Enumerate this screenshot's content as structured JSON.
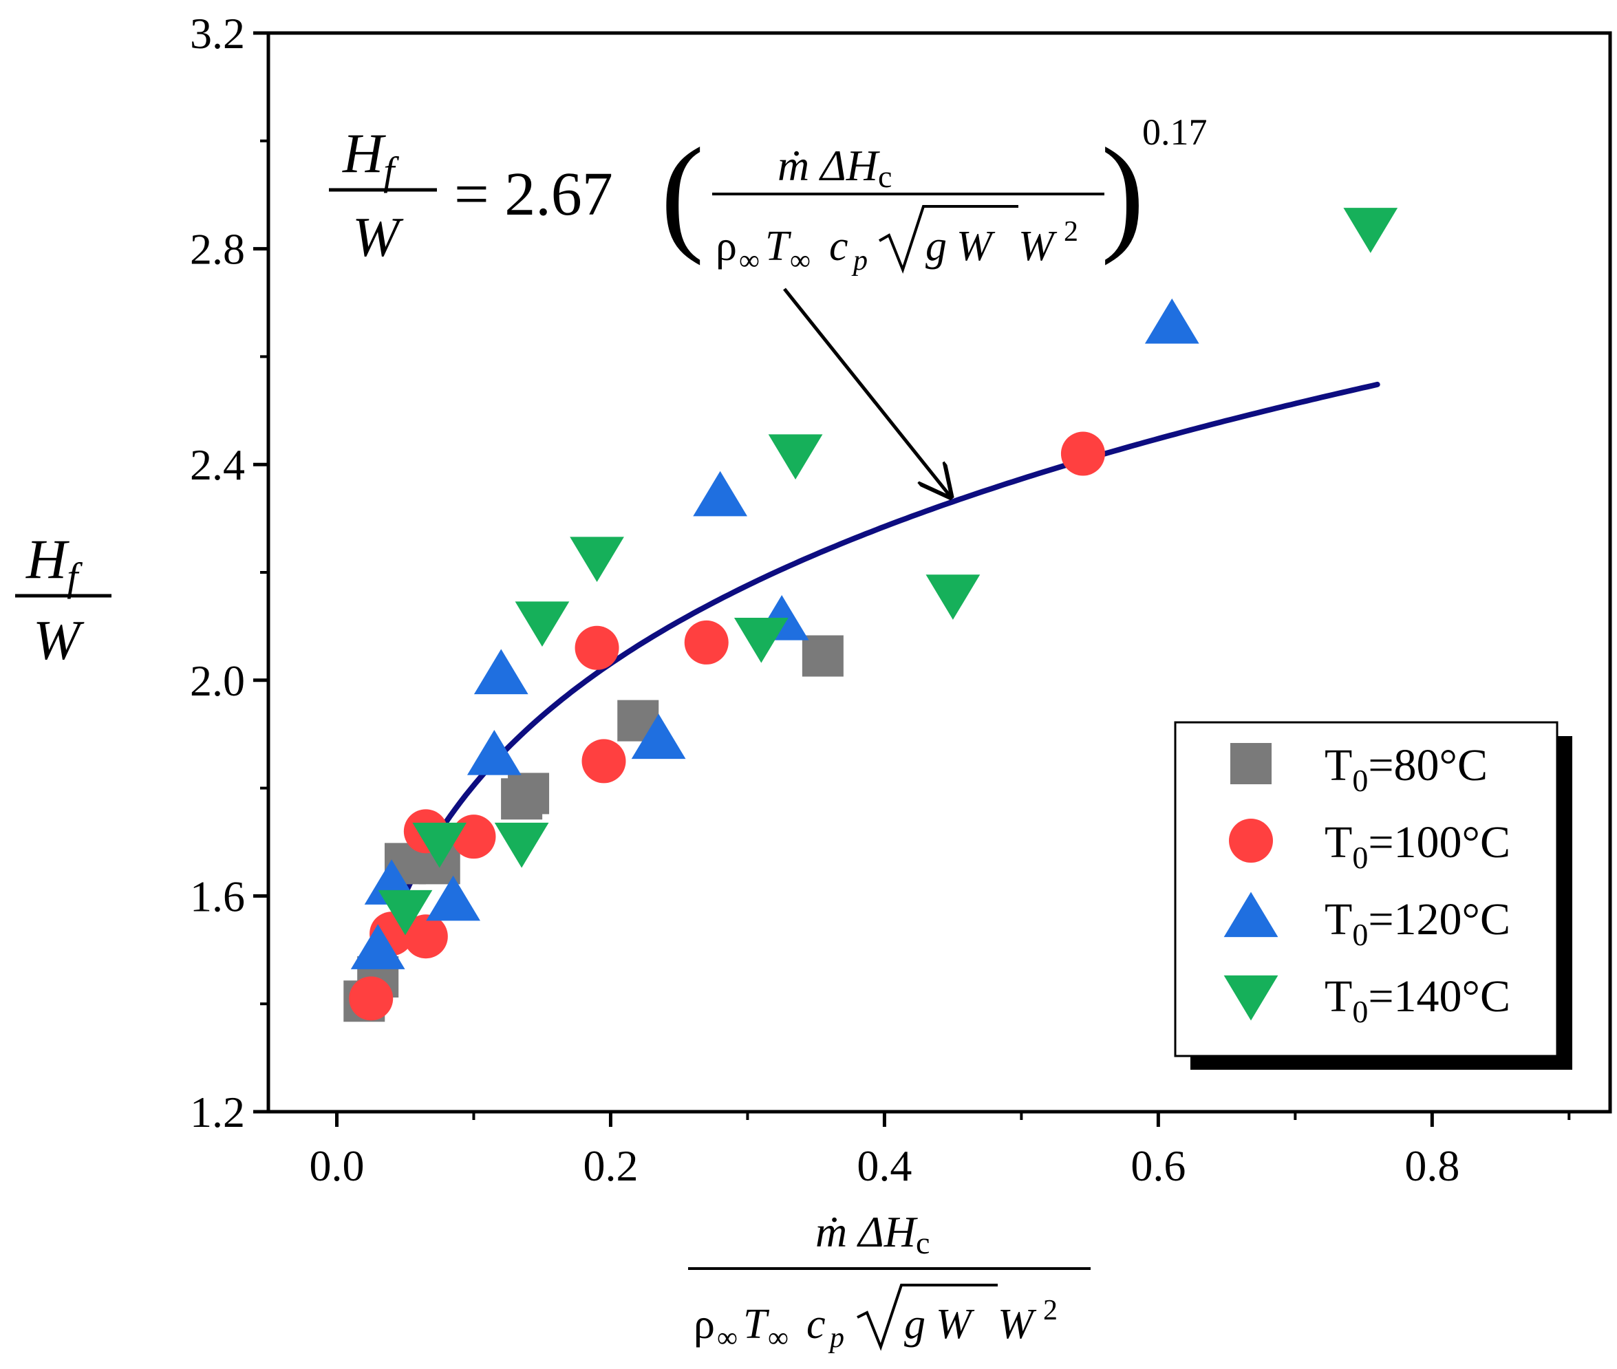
{
  "chart_data": {
    "type": "scatter",
    "title": "",
    "xlabel": {
      "numerator": "ṁ ΔH",
      "numerator_sub": "c",
      "denominator": "ρ∞T∞cp√(gW)W²",
      "den_rho": "ρ",
      "den_inf": "∞",
      "den_T": "T",
      "den_c": "c",
      "den_p": "p",
      "den_g": "g",
      "den_W1": "W",
      "den_W2": "W",
      "den_sq": "2"
    },
    "ylabel": {
      "numerator": "H",
      "numerator_sub": "f",
      "denominator": "W"
    },
    "xlim": [
      -0.05,
      0.93
    ],
    "ylim": [
      1.2,
      3.2
    ],
    "x_ticks": [
      0.0,
      0.2,
      0.4,
      0.6,
      0.8
    ],
    "x_tick_labels": [
      "0.0",
      "0.2",
      "0.4",
      "0.6",
      "0.8"
    ],
    "y_ticks": [
      1.2,
      1.6,
      2.0,
      2.4,
      2.8,
      3.2
    ],
    "y_tick_labels": [
      "1.2",
      "1.6",
      "2.0",
      "2.4",
      "2.8",
      "3.2"
    ],
    "grid": false,
    "legend_position": "bottom-right",
    "series": [
      {
        "name": "T0=80°C",
        "label_main": "T",
        "label_sub": "0",
        "label_rest": "=80°C",
        "marker": "square",
        "color": "#7a7a7a",
        "points": [
          [
            0.02,
            1.405
          ],
          [
            0.03,
            1.45
          ],
          [
            0.05,
            1.66
          ],
          [
            0.075,
            1.66
          ],
          [
            0.135,
            1.78
          ],
          [
            0.14,
            1.79
          ],
          [
            0.22,
            1.925
          ],
          [
            0.355,
            2.045
          ]
        ]
      },
      {
        "name": "T0=100°C",
        "label_main": "T",
        "label_sub": "0",
        "label_rest": "=100°C",
        "marker": "circle",
        "color": "#ff4040",
        "points": [
          [
            0.025,
            1.41
          ],
          [
            0.04,
            1.53
          ],
          [
            0.065,
            1.525
          ],
          [
            0.065,
            1.72
          ],
          [
            0.1,
            1.71
          ],
          [
            0.195,
            1.85
          ],
          [
            0.19,
            2.06
          ],
          [
            0.27,
            2.07
          ],
          [
            0.545,
            2.42
          ]
        ]
      },
      {
        "name": "T0=120°C",
        "label_main": "T",
        "label_sub": "0",
        "label_rest": "=120°C",
        "marker": "triangle-up",
        "color": "#1f6fe0",
        "points": [
          [
            0.03,
            1.5
          ],
          [
            0.04,
            1.62
          ],
          [
            0.085,
            1.59
          ],
          [
            0.115,
            1.86
          ],
          [
            0.12,
            2.01
          ],
          [
            0.235,
            1.89
          ],
          [
            0.28,
            2.34
          ],
          [
            0.325,
            2.11
          ],
          [
            0.61,
            2.66
          ]
        ]
      },
      {
        "name": "T0=140°C",
        "label_main": "T",
        "label_sub": "0",
        "label_rest": "=140°C",
        "marker": "triangle-down",
        "color": "#16b05a",
        "points": [
          [
            0.05,
            1.575
          ],
          [
            0.075,
            1.7
          ],
          [
            0.135,
            1.7
          ],
          [
            0.15,
            2.11
          ],
          [
            0.19,
            2.23
          ],
          [
            0.31,
            2.08
          ],
          [
            0.335,
            2.42
          ],
          [
            0.45,
            2.16
          ],
          [
            0.755,
            2.84
          ]
        ]
      }
    ],
    "fit_curve": {
      "color": "#0d0d80",
      "coefficient": 2.67,
      "exponent": 0.17,
      "x_range": [
        0.02,
        0.76
      ]
    },
    "annotation": {
      "lhs_num": "H",
      "lhs_sub": "f",
      "lhs_den": "W",
      "equals_coeff": "= 2.67",
      "exponent": "0.17",
      "points_to_x": 0.45
    }
  }
}
